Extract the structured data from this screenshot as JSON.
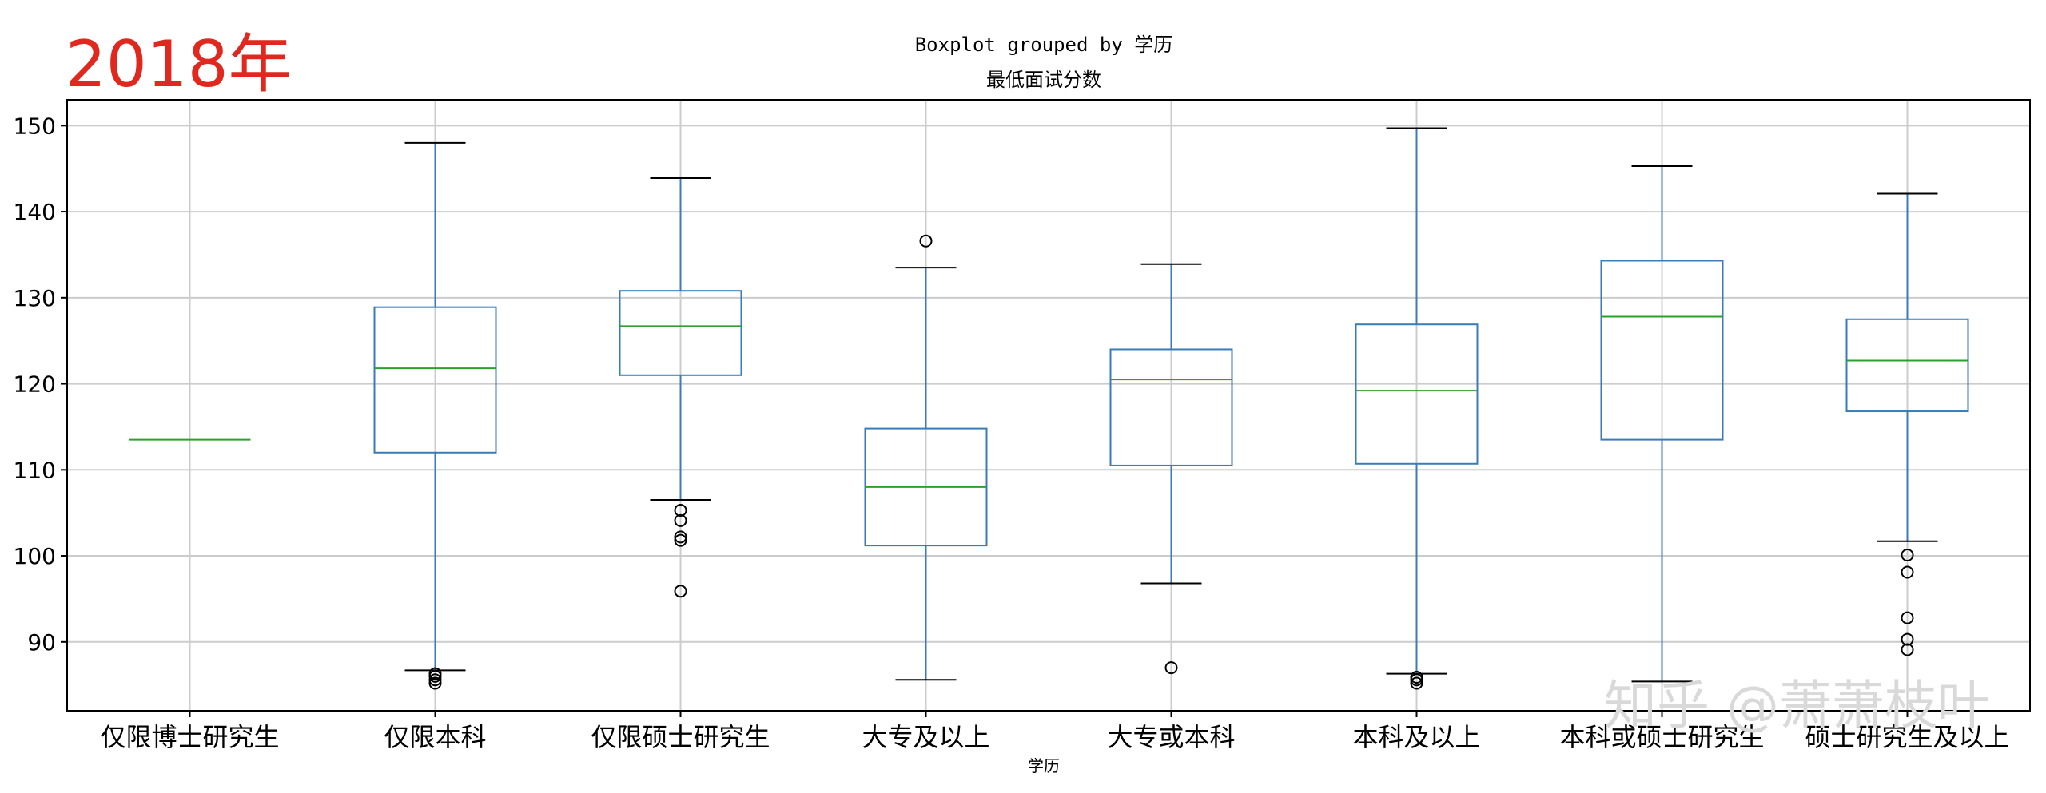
{
  "year_label": "2018年",
  "watermark": "知乎 @萧萧枝叶",
  "chart_data": {
    "type": "boxplot",
    "title": "Boxplot grouped by 学历",
    "subtitle": "最低面试分数",
    "xlabel": "学历",
    "ylabel": "",
    "ylim": [
      82,
      153
    ],
    "yticks": [
      90,
      100,
      110,
      120,
      130,
      140,
      150
    ],
    "grid": true,
    "colors": {
      "box": "#3a7cb8",
      "median": "#2ca02c",
      "cap": "#000000",
      "flier": "#000000",
      "grid": "#cccccc",
      "year_label": "#e0281e",
      "watermark": "#d9d9d9"
    },
    "categories": [
      "仅限博士研究生",
      "仅限本科",
      "仅限硕士研究生",
      "大专及以上",
      "大专或本科",
      "本科及以上",
      "本科或硕士研究生",
      "硕士研究生及以上"
    ],
    "boxes": [
      {
        "category": "仅限博士研究生",
        "whislo": 113.5,
        "q1": 113.5,
        "med": 113.5,
        "q3": 113.5,
        "whishi": 113.5,
        "fliers": []
      },
      {
        "category": "仅限本科",
        "whislo": 86.7,
        "q1": 112.0,
        "med": 121.8,
        "q3": 128.9,
        "whishi": 148.0,
        "fliers": [
          86.3,
          86.0,
          85.6,
          85.2
        ]
      },
      {
        "category": "仅限硕士研究生",
        "whislo": 106.5,
        "q1": 121.0,
        "med": 126.7,
        "q3": 130.8,
        "whishi": 143.9,
        "fliers": [
          105.3,
          104.1,
          102.2,
          101.8,
          95.9
        ]
      },
      {
        "category": "大专及以上",
        "whislo": 85.6,
        "q1": 101.2,
        "med": 108.0,
        "q3": 114.8,
        "whishi": 133.5,
        "fliers": [
          136.6
        ]
      },
      {
        "category": "大专或本科",
        "whislo": 96.8,
        "q1": 110.5,
        "med": 120.5,
        "q3": 124.0,
        "whishi": 133.9,
        "fliers": [
          87.0
        ]
      },
      {
        "category": "本科及以上",
        "whislo": 86.3,
        "q1": 110.7,
        "med": 119.2,
        "q3": 126.9,
        "whishi": 149.7,
        "fliers": [
          85.9,
          85.6,
          85.2
        ]
      },
      {
        "category": "本科或硕士研究生",
        "whislo": 85.4,
        "q1": 113.5,
        "med": 127.8,
        "q3": 134.3,
        "whishi": 145.3,
        "fliers": []
      },
      {
        "category": "硕士研究生及以上",
        "whislo": 101.7,
        "q1": 116.8,
        "med": 122.7,
        "q3": 127.5,
        "whishi": 142.1,
        "fliers": [
          100.1,
          98.1,
          92.8,
          90.3,
          89.1
        ]
      }
    ]
  }
}
